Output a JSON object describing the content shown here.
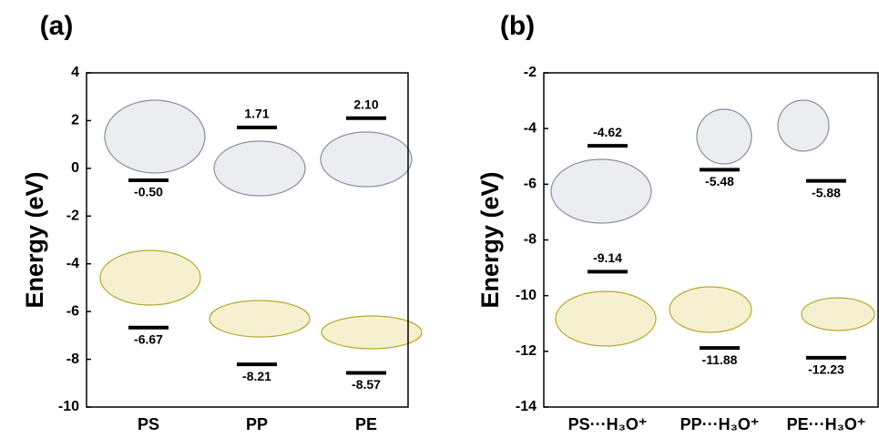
{
  "chart_data": [
    {
      "type": "level",
      "title": "(a)",
      "y_label": "Energy (eV)",
      "categories": [
        "PS",
        "PP",
        "PE"
      ],
      "series": [
        {
          "color": "#000000",
          "values": [
            -0.5,
            1.71,
            2.1
          ],
          "value_labels": [
            "-0.50",
            "1.71",
            "2.10"
          ]
        },
        {
          "color": "#000000",
          "values": [
            -6.67,
            -8.21,
            -8.57
          ],
          "value_labels": [
            "-6.67",
            "-8.21",
            "-8.57"
          ]
        }
      ],
      "ylim": [
        -10,
        4
      ],
      "yticks": [
        -10,
        -8,
        -6,
        -4,
        -2,
        0,
        2,
        4
      ]
    },
    {
      "type": "level",
      "title": "(b)",
      "y_label": "Energy (eV)",
      "categories": [
        "PS···H₃O⁺",
        "PP···H₃O⁺",
        "PE···H₃O⁺"
      ],
      "series": [
        {
          "color": "#000000",
          "values": [
            -4.62,
            -5.48,
            -5.88
          ],
          "value_labels": [
            "-4.62",
            "-5.48",
            "-5.88"
          ]
        },
        {
          "color": "#000000",
          "values": [
            -9.14,
            -11.88,
            -12.23
          ],
          "value_labels": [
            "-9.14",
            "-11.88",
            "-12.23"
          ]
        }
      ],
      "ylim": [
        -14,
        -2
      ],
      "yticks": [
        -14,
        -12,
        -10,
        -8,
        -6,
        -4,
        -2
      ]
    }
  ]
}
